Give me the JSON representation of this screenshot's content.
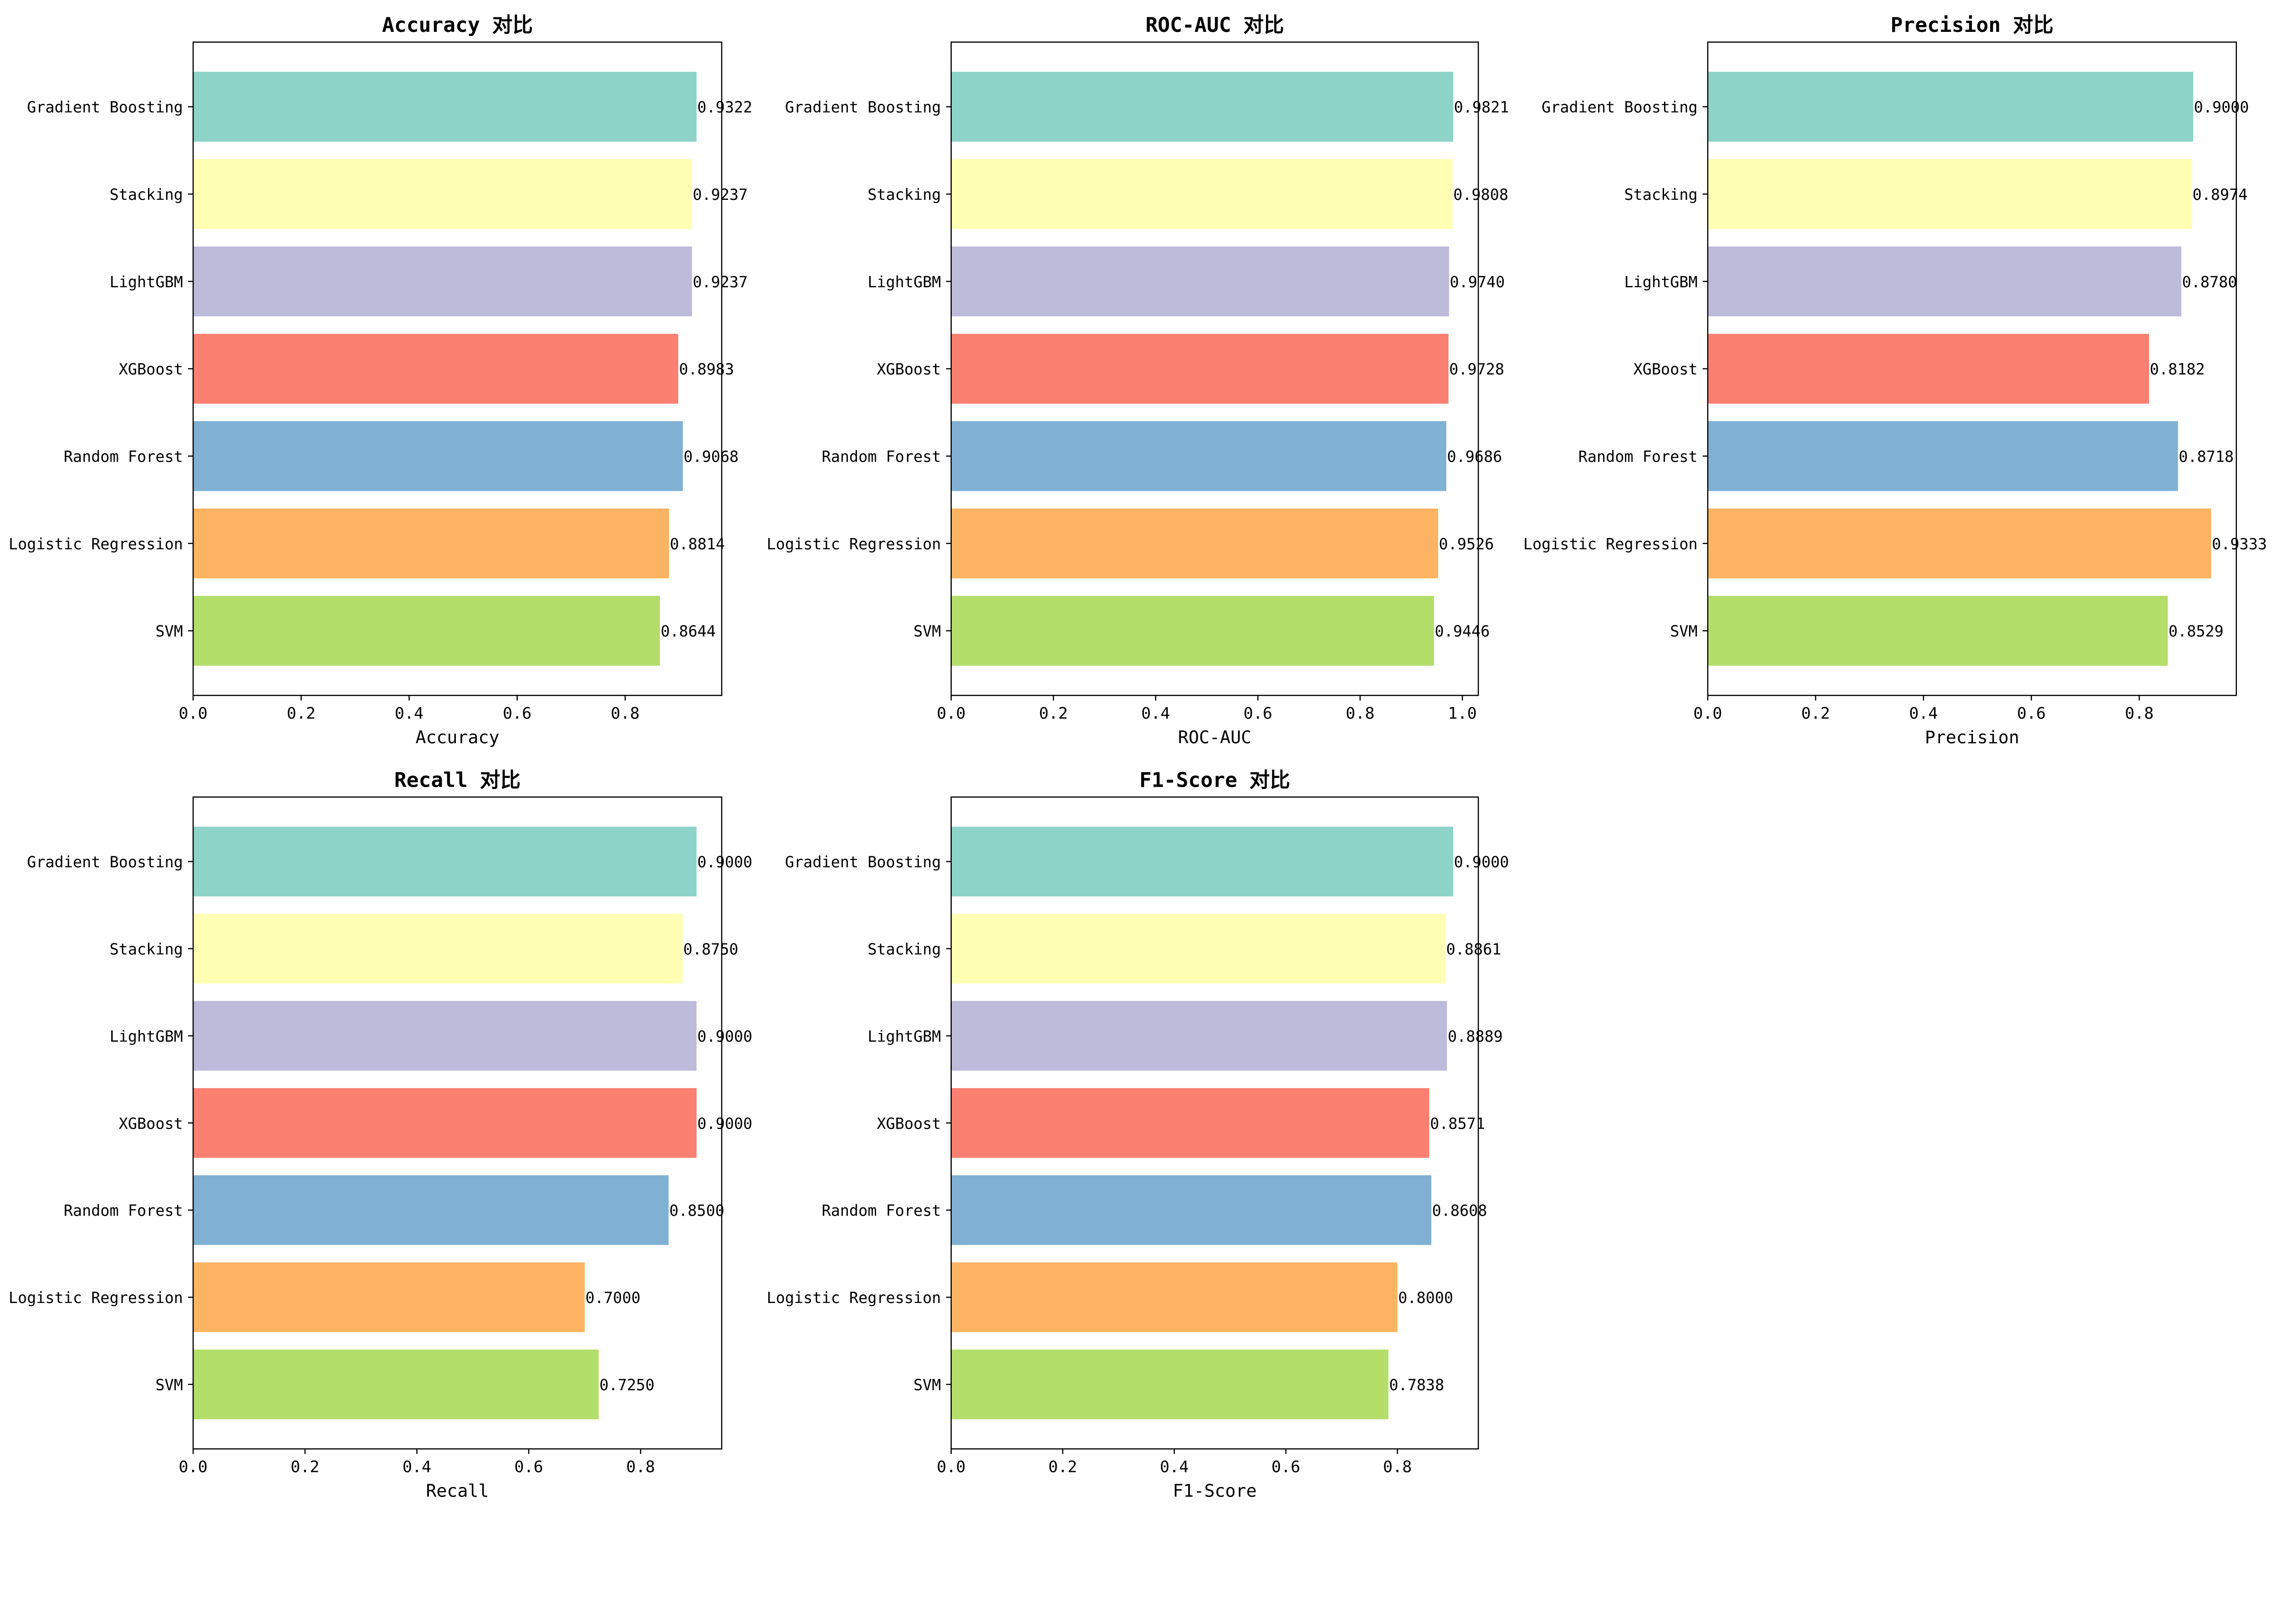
{
  "chart_data": [
    {
      "type": "bar",
      "orientation": "horizontal",
      "title": "Accuracy 对比",
      "xlabel": "Accuracy",
      "ylabel": "",
      "categories": [
        "Gradient Boosting",
        "Stacking",
        "LightGBM",
        "XGBoost",
        "Random Forest",
        "Logistic Regression",
        "SVM"
      ],
      "values": [
        0.9322,
        0.9237,
        0.9237,
        0.8983,
        0.9068,
        0.8814,
        0.8644
      ],
      "value_labels": [
        "0.9322",
        "0.9237",
        "0.9237",
        "0.8983",
        "0.9068",
        "0.8814",
        "0.8644"
      ],
      "xlim": [
        0,
        0.9788
      ],
      "xticks": [
        0,
        0.2,
        0.4,
        0.6,
        0.8
      ],
      "xtick_labels": [
        "0.0",
        "0.2",
        "0.4",
        "0.6",
        "0.8"
      ],
      "grid": false
    },
    {
      "type": "bar",
      "orientation": "horizontal",
      "title": "ROC-AUC 对比",
      "xlabel": "ROC-AUC",
      "ylabel": "",
      "categories": [
        "Gradient Boosting",
        "Stacking",
        "LightGBM",
        "XGBoost",
        "Random Forest",
        "Logistic Regression",
        "SVM"
      ],
      "values": [
        0.9821,
        0.9808,
        0.974,
        0.9728,
        0.9686,
        0.9526,
        0.9446
      ],
      "value_labels": [
        "0.9821",
        "0.9808",
        "0.9740",
        "0.9728",
        "0.9686",
        "0.9526",
        "0.9446"
      ],
      "xlim": [
        0,
        1.0312
      ],
      "xticks": [
        0,
        0.2,
        0.4,
        0.6,
        0.8,
        1.0
      ],
      "xtick_labels": [
        "0.0",
        "0.2",
        "0.4",
        "0.6",
        "0.8",
        "1.0"
      ],
      "grid": false
    },
    {
      "type": "bar",
      "orientation": "horizontal",
      "title": "Precision 对比",
      "xlabel": "Precision",
      "ylabel": "",
      "categories": [
        "Gradient Boosting",
        "Stacking",
        "LightGBM",
        "XGBoost",
        "Random Forest",
        "Logistic Regression",
        "SVM"
      ],
      "values": [
        0.9,
        0.8974,
        0.878,
        0.8182,
        0.8718,
        0.9333,
        0.8529
      ],
      "value_labels": [
        "0.9000",
        "0.8974",
        "0.8780",
        "0.8182",
        "0.8718",
        "0.9333",
        "0.8529"
      ],
      "xlim": [
        0,
        0.98
      ],
      "xticks": [
        0,
        0.2,
        0.4,
        0.6,
        0.8
      ],
      "xtick_labels": [
        "0.0",
        "0.2",
        "0.4",
        "0.6",
        "0.8"
      ],
      "grid": false
    },
    {
      "type": "bar",
      "orientation": "horizontal",
      "title": "Recall 对比",
      "xlabel": "Recall",
      "ylabel": "",
      "categories": [
        "Gradient Boosting",
        "Stacking",
        "LightGBM",
        "XGBoost",
        "Random Forest",
        "Logistic Regression",
        "SVM"
      ],
      "values": [
        0.9,
        0.875,
        0.9,
        0.9,
        0.85,
        0.7,
        0.725
      ],
      "value_labels": [
        "0.9000",
        "0.8750",
        "0.9000",
        "0.9000",
        "0.8500",
        "0.7000",
        "0.7250"
      ],
      "xlim": [
        0,
        0.945
      ],
      "xticks": [
        0,
        0.2,
        0.4,
        0.6,
        0.8
      ],
      "xtick_labels": [
        "0.0",
        "0.2",
        "0.4",
        "0.6",
        "0.8"
      ],
      "grid": false
    },
    {
      "type": "bar",
      "orientation": "horizontal",
      "title": "F1-Score 对比",
      "xlabel": "F1-Score",
      "ylabel": "",
      "categories": [
        "Gradient Boosting",
        "Stacking",
        "LightGBM",
        "XGBoost",
        "Random Forest",
        "Logistic Regression",
        "SVM"
      ],
      "values": [
        0.9,
        0.8861,
        0.8889,
        0.8571,
        0.8608,
        0.8,
        0.7838
      ],
      "value_labels": [
        "0.9000",
        "0.8861",
        "0.8889",
        "0.8571",
        "0.8608",
        "0.8000",
        "0.7838"
      ],
      "xlim": [
        0,
        0.945
      ],
      "xticks": [
        0,
        0.2,
        0.4,
        0.6,
        0.8
      ],
      "xtick_labels": [
        "0.0",
        "0.2",
        "0.4",
        "0.6",
        "0.8"
      ],
      "grid": false
    }
  ],
  "colors": {
    "Gradient Boosting": "#8dd3c7",
    "Stacking": "#ffffb3",
    "LightGBM": "#bebada",
    "XGBoost": "#fb8072",
    "Random Forest": "#80b1d3",
    "Logistic Regression": "#fdb462",
    "SVM": "#b3de69"
  }
}
